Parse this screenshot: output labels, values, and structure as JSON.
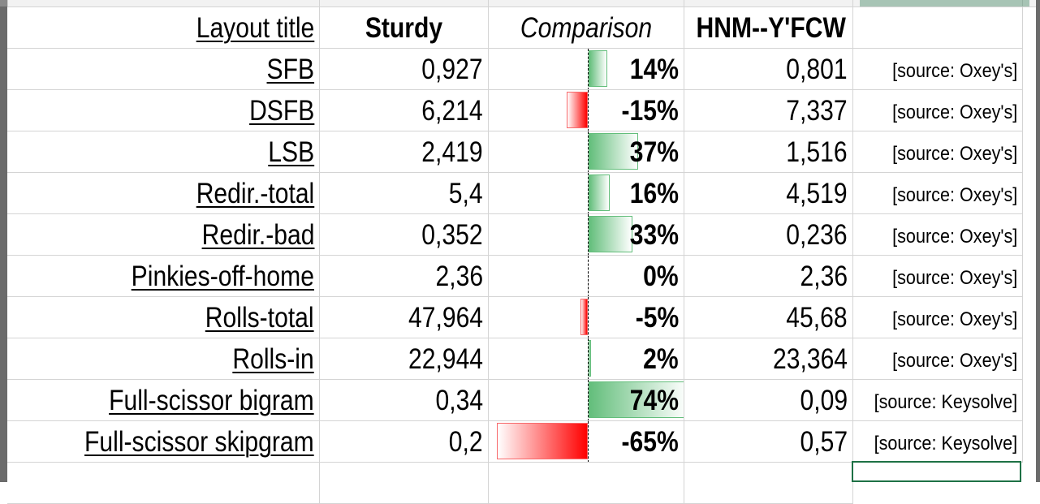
{
  "header": {
    "layout_title": "Layout title",
    "layout_a": "Sturdy",
    "comparison": "Comparison",
    "layout_b": "HNM--Y'FCW"
  },
  "rows": [
    {
      "label": "SFB",
      "a": "0,927",
      "pct_text": "14%",
      "pct": 14,
      "b": "0,801",
      "source": "[source: Oxey's]"
    },
    {
      "label": "DSFB",
      "a": "6,214",
      "pct_text": "-15%",
      "pct": -15,
      "b": "7,337",
      "source": "[source: Oxey's]"
    },
    {
      "label": "LSB",
      "a": "2,419",
      "pct_text": "37%",
      "pct": 37,
      "b": "1,516",
      "source": "[source: Oxey's]"
    },
    {
      "label": "Redir.-total",
      "a": "5,4",
      "pct_text": "16%",
      "pct": 16,
      "b": "4,519",
      "source": "[source: Oxey's]"
    },
    {
      "label": "Redir.-bad",
      "a": "0,352",
      "pct_text": "33%",
      "pct": 33,
      "b": "0,236",
      "source": "[source: Oxey's]"
    },
    {
      "label": "Pinkies-off-home",
      "a": "2,36",
      "pct_text": "0%",
      "pct": 0,
      "b": "2,36",
      "source": "[source: Oxey's]"
    },
    {
      "label": "Rolls-total",
      "a": "47,964",
      "pct_text": "-5%",
      "pct": -5,
      "b": "45,68",
      "source": "[source: Oxey's]"
    },
    {
      "label": "Rolls-in",
      "a": "22,944",
      "pct_text": "2%",
      "pct": 2,
      "b": "23,364",
      "source": "[source: Oxey's]"
    },
    {
      "label": "Full-scissor bigram",
      "a": "0,34",
      "pct_text": "74%",
      "pct": 74,
      "b": "0,09",
      "source": "[source: Keysolve]"
    },
    {
      "label": "Full-scissor skipgram",
      "a": "0,2",
      "pct_text": "-65%",
      "pct": -65,
      "b": "0,57",
      "source": "[source: Keysolve]"
    }
  ],
  "colors": {
    "positive_bar": "#63be7b",
    "negative_bar": "#ff0000",
    "gridline": "#d4d4d4",
    "selection": "#1e7145"
  }
}
